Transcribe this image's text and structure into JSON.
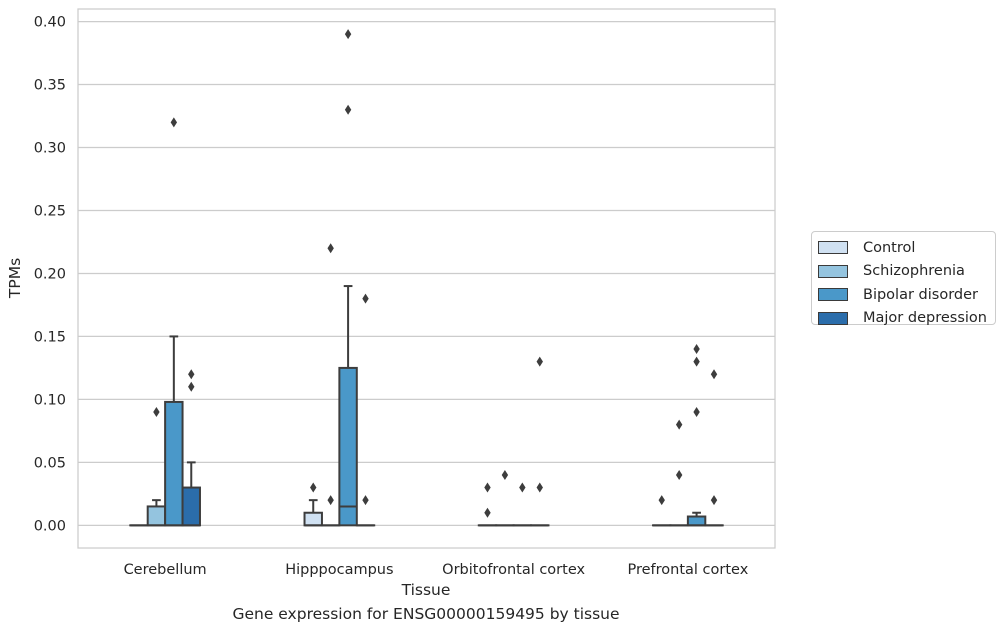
{
  "caption": "Gene expression for ENSG00000159495 by tissue",
  "chart_data": {
    "type": "box",
    "xlabel": "Tissue",
    "ylabel": "TPMs",
    "ylim": [
      -0.018,
      0.41
    ],
    "yticks": [
      0.0,
      0.05,
      0.1,
      0.15,
      0.2,
      0.25,
      0.3,
      0.35,
      0.4
    ],
    "ytick_labels": [
      "0.00",
      "0.05",
      "0.10",
      "0.15",
      "0.20",
      "0.25",
      "0.30",
      "0.35",
      "0.40"
    ],
    "grid": "horizontal",
    "legend_position": "right",
    "categories": [
      "Cerebellum",
      "Hipppocampus",
      "Orbitofrontal cortex",
      "Prefrontal cortex"
    ],
    "series": [
      {
        "name": "Control",
        "color": "#d0e1f2",
        "boxes": [
          {
            "q1": 0.0,
            "median": 0.0,
            "q3": 0.0,
            "whislo": 0.0,
            "whishi": 0.0,
            "fliers": []
          },
          {
            "q1": 0.0,
            "median": 0.0,
            "q3": 0.01,
            "whislo": 0.0,
            "whishi": 0.02,
            "fliers": [
              0.03
            ]
          },
          {
            "q1": 0.0,
            "median": 0.0,
            "q3": 0.0,
            "whislo": 0.0,
            "whishi": 0.0,
            "fliers": [
              0.01,
              0.03
            ]
          },
          {
            "q1": 0.0,
            "median": 0.0,
            "q3": 0.0,
            "whislo": 0.0,
            "whishi": 0.0,
            "fliers": [
              0.02
            ]
          }
        ]
      },
      {
        "name": "Schizophrenia",
        "color": "#94c4df",
        "boxes": [
          {
            "q1": 0.0,
            "median": 0.0,
            "q3": 0.015,
            "whislo": 0.0,
            "whishi": 0.02,
            "fliers": [
              0.09
            ]
          },
          {
            "q1": 0.0,
            "median": 0.0,
            "q3": 0.0,
            "whislo": 0.0,
            "whishi": 0.0,
            "fliers": [
              0.02,
              0.22
            ]
          },
          {
            "q1": 0.0,
            "median": 0.0,
            "q3": 0.0,
            "whislo": 0.0,
            "whishi": 0.0,
            "fliers": [
              0.04
            ]
          },
          {
            "q1": 0.0,
            "median": 0.0,
            "q3": 0.0,
            "whislo": 0.0,
            "whishi": 0.0,
            "fliers": [
              0.04,
              0.08
            ]
          }
        ]
      },
      {
        "name": "Bipolar disorder",
        "color": "#4a98c9",
        "boxes": [
          {
            "q1": 0.0,
            "median": 0.0,
            "q3": 0.098,
            "whislo": 0.0,
            "whishi": 0.15,
            "fliers": [
              0.32
            ]
          },
          {
            "q1": 0.0,
            "median": 0.015,
            "q3": 0.125,
            "whislo": 0.0,
            "whishi": 0.19,
            "fliers": [
              0.33,
              0.39
            ]
          },
          {
            "q1": 0.0,
            "median": 0.0,
            "q3": 0.0,
            "whislo": 0.0,
            "whishi": 0.0,
            "fliers": [
              0.03
            ]
          },
          {
            "q1": 0.0,
            "median": 0.0,
            "q3": 0.007,
            "whislo": 0.0,
            "whishi": 0.01,
            "fliers": [
              0.09,
              0.13,
              0.14
            ]
          }
        ]
      },
      {
        "name": "Major depression",
        "color": "#2b6dab",
        "boxes": [
          {
            "q1": 0.0,
            "median": 0.0,
            "q3": 0.03,
            "whislo": 0.0,
            "whishi": 0.05,
            "fliers": [
              0.11,
              0.12
            ]
          },
          {
            "q1": 0.0,
            "median": 0.0,
            "q3": 0.0,
            "whislo": 0.0,
            "whishi": 0.0,
            "fliers": [
              0.02,
              0.18
            ]
          },
          {
            "q1": 0.0,
            "median": 0.0,
            "q3": 0.0,
            "whislo": 0.0,
            "whishi": 0.0,
            "fliers": [
              0.03,
              0.13
            ]
          },
          {
            "q1": 0.0,
            "median": 0.0,
            "q3": 0.0,
            "whislo": 0.0,
            "whishi": 0.0,
            "fliers": [
              0.02,
              0.12
            ]
          }
        ]
      }
    ]
  }
}
